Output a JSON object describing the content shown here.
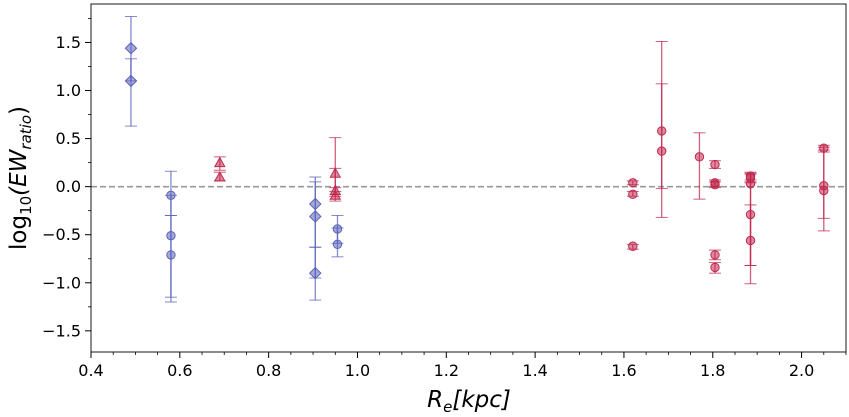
{
  "chart_data": {
    "type": "scatter",
    "title": "",
    "xlabel": {
      "base": "R",
      "sub": "e",
      "rest": "[kpc]"
    },
    "ylabel": {
      "prefix": "log",
      "sub10": "10",
      "open": "(EW",
      "sub": "ratio",
      "close": ")"
    },
    "xlim": [
      0.4,
      2.1
    ],
    "ylim": [
      -1.72,
      1.9
    ],
    "xticks": [
      0.4,
      0.6,
      0.8,
      1.0,
      1.2,
      1.4,
      1.6,
      1.8,
      2.0
    ],
    "xtick_labels": [
      "0.4",
      "0.6",
      "0.8",
      "1.0",
      "1.2",
      "1.4",
      "1.6",
      "1.8",
      "2.0"
    ],
    "yticks": [
      -1.5,
      -1.0,
      -0.5,
      0.0,
      0.5,
      1.0,
      1.5
    ],
    "ytick_labels": [
      "−1.5",
      "−1.0",
      "−0.5",
      "0.0",
      "0.5",
      "1.0",
      "1.5"
    ],
    "reference_line": {
      "y": 0.0,
      "style": "dashed",
      "color": "#999999"
    },
    "colors": {
      "blue": "#5b62b8",
      "red": "#c0284f"
    },
    "points": [
      {
        "x": 0.49,
        "y": 1.44,
        "lo": 1.1,
        "hi": 1.77,
        "marker": "diamond",
        "color": "blue"
      },
      {
        "x": 0.49,
        "y": 1.1,
        "lo": 0.63,
        "hi": 1.33,
        "marker": "diamond",
        "color": "blue"
      },
      {
        "x": 0.58,
        "y": -0.09,
        "lo": -0.3,
        "hi": 0.16,
        "marker": "circle",
        "color": "blue"
      },
      {
        "x": 0.58,
        "y": -0.51,
        "lo": -1.15,
        "hi": -0.09,
        "marker": "circle",
        "color": "blue"
      },
      {
        "x": 0.58,
        "y": -0.71,
        "lo": -1.2,
        "hi": -0.3,
        "marker": "circle",
        "color": "blue"
      },
      {
        "x": 0.69,
        "y": 0.25,
        "lo": 0.17,
        "hi": 0.31,
        "marker": "triangle",
        "color": "red"
      },
      {
        "x": 0.69,
        "y": 0.1,
        "lo": 0.06,
        "hi": 0.15,
        "marker": "triangle",
        "color": "red"
      },
      {
        "x": 0.905,
        "y": -0.18,
        "lo": -0.63,
        "hi": 0.1,
        "marker": "diamond",
        "color": "blue"
      },
      {
        "x": 0.905,
        "y": -0.31,
        "lo": -0.95,
        "hi": 0.05,
        "marker": "diamond",
        "color": "blue"
      },
      {
        "x": 0.905,
        "y": -0.9,
        "lo": -1.18,
        "hi": -0.63,
        "marker": "diamond",
        "color": "blue"
      },
      {
        "x": 0.95,
        "y": 0.14,
        "lo": -0.05,
        "hi": 0.51,
        "marker": "triangle",
        "color": "red"
      },
      {
        "x": 0.95,
        "y": -0.04,
        "lo": -0.1,
        "hi": 0.19,
        "marker": "triangle",
        "color": "red"
      },
      {
        "x": 0.95,
        "y": -0.09,
        "lo": -0.15,
        "hi": -0.01,
        "marker": "triangle",
        "color": "red"
      },
      {
        "x": 0.955,
        "y": -0.44,
        "lo": -0.59,
        "hi": -0.3,
        "marker": "circle",
        "color": "blue"
      },
      {
        "x": 0.955,
        "y": -0.6,
        "lo": -0.73,
        "hi": -0.43,
        "marker": "circle",
        "color": "blue"
      },
      {
        "x": 1.62,
        "y": 0.04,
        "lo": 0.02,
        "hi": 0.06,
        "marker": "circle",
        "color": "red"
      },
      {
        "x": 1.62,
        "y": -0.08,
        "lo": -0.1,
        "hi": -0.05,
        "marker": "circle",
        "color": "red"
      },
      {
        "x": 1.62,
        "y": -0.62,
        "lo": -0.65,
        "hi": -0.6,
        "marker": "circle",
        "color": "red"
      },
      {
        "x": 1.685,
        "y": 0.58,
        "lo": -0.02,
        "hi": 1.51,
        "marker": "circle",
        "color": "red"
      },
      {
        "x": 1.685,
        "y": 0.37,
        "lo": -0.32,
        "hi": 1.07,
        "marker": "circle",
        "color": "red"
      },
      {
        "x": 1.77,
        "y": 0.31,
        "lo": -0.13,
        "hi": 0.56,
        "marker": "circle",
        "color": "red"
      },
      {
        "x": 1.805,
        "y": 0.23,
        "lo": 0.19,
        "hi": 0.27,
        "marker": "circle",
        "color": "red"
      },
      {
        "x": 1.805,
        "y": 0.04,
        "lo": 0.0,
        "hi": 0.07,
        "marker": "circle",
        "color": "red"
      },
      {
        "x": 1.805,
        "y": 0.02,
        "lo": -0.01,
        "hi": 0.05,
        "marker": "circle",
        "color": "red"
      },
      {
        "x": 1.805,
        "y": -0.71,
        "lo": -0.76,
        "hi": -0.66,
        "marker": "circle",
        "color": "red"
      },
      {
        "x": 1.805,
        "y": -0.84,
        "lo": -0.9,
        "hi": -0.79,
        "marker": "circle",
        "color": "red"
      },
      {
        "x": 1.885,
        "y": 0.11,
        "lo": 0.07,
        "hi": 0.15,
        "marker": "circle",
        "color": "red"
      },
      {
        "x": 1.885,
        "y": 0.09,
        "lo": 0.05,
        "hi": 0.14,
        "marker": "circle",
        "color": "red"
      },
      {
        "x": 1.885,
        "y": 0.03,
        "lo": -0.82,
        "hi": 0.13,
        "marker": "circle",
        "color": "red"
      },
      {
        "x": 1.885,
        "y": -0.29,
        "lo": -0.82,
        "hi": 0.04,
        "marker": "circle",
        "color": "red"
      },
      {
        "x": 1.885,
        "y": -0.56,
        "lo": -1.01,
        "hi": -0.19,
        "marker": "circle",
        "color": "red"
      },
      {
        "x": 2.05,
        "y": 0.4,
        "lo": 0.36,
        "hi": 0.43,
        "marker": "circle",
        "color": "red"
      },
      {
        "x": 2.05,
        "y": 0.01,
        "lo": -0.33,
        "hi": 0.41,
        "marker": "circle",
        "color": "red"
      },
      {
        "x": 2.05,
        "y": -0.04,
        "lo": -0.46,
        "hi": 0.38,
        "marker": "circle",
        "color": "red"
      }
    ]
  }
}
